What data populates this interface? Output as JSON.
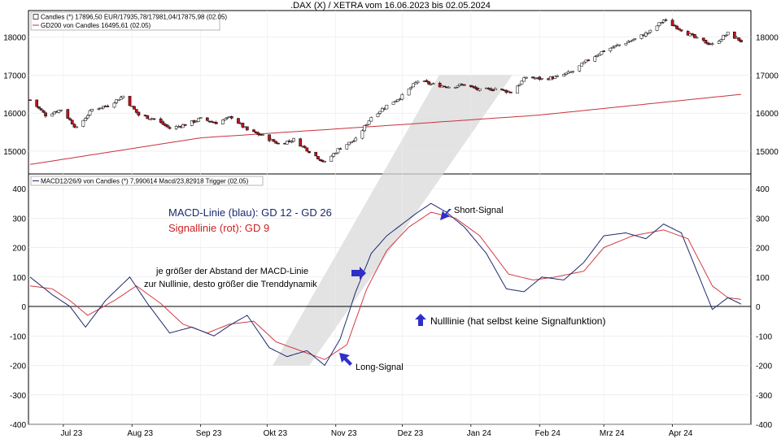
{
  "title": ".DAX (X) / XETRA vom 16.06.2023 bis 02.05.2024",
  "colors": {
    "candle_up": "#ffffff",
    "candle_down": "#c0141e",
    "gd200": "#c8323c",
    "macd": "#1f2a6b",
    "signal": "#d23c46",
    "zero_line": "#000000",
    "arrow": "#2f2fc8",
    "channel": "#d9d9d9",
    "blue_text": "#1a2a6c",
    "red_text": "#cc2222"
  },
  "chart_data": [
    {
      "type": "candlestick",
      "panel": "price",
      "legend": [
        "Candles (*) 17896,50 EUR/17935,78/17981,04/17875,98 (02.05)",
        "GD200 von Candles 16495,61 (02.05)"
      ],
      "ylim": [
        14400,
        18700
      ],
      "yticks": [
        15000,
        16000,
        17000,
        18000
      ],
      "ytick_labels": [
        "15000",
        "16000",
        "17000",
        "18000"
      ],
      "close_anchors": [
        [
          "2023-06-16",
          16350
        ],
        [
          "2023-06-23",
          15950
        ],
        [
          "2023-06-30",
          16100
        ],
        [
          "2023-07-07",
          15600
        ],
        [
          "2023-07-14",
          16100
        ],
        [
          "2023-07-21",
          16200
        ],
        [
          "2023-07-28",
          16450
        ],
        [
          "2023-08-04",
          15950
        ],
        [
          "2023-08-11",
          15850
        ],
        [
          "2023-08-18",
          15600
        ],
        [
          "2023-08-25",
          15700
        ],
        [
          "2023-09-01",
          15850
        ],
        [
          "2023-09-08",
          15750
        ],
        [
          "2023-09-15",
          15900
        ],
        [
          "2023-09-22",
          15550
        ],
        [
          "2023-09-29",
          15400
        ],
        [
          "2023-10-06",
          15200
        ],
        [
          "2023-10-13",
          15300
        ],
        [
          "2023-10-20",
          15000
        ],
        [
          "2023-10-27",
          14700
        ],
        [
          "2023-11-03",
          15100
        ],
        [
          "2023-11-10",
          15300
        ],
        [
          "2023-11-17",
          15900
        ],
        [
          "2023-11-24",
          16200
        ],
        [
          "2023-12-01",
          16450
        ],
        [
          "2023-12-08",
          16850
        ],
        [
          "2023-12-15",
          16750
        ],
        [
          "2023-12-22",
          16700
        ],
        [
          "2023-12-29",
          16750
        ],
        [
          "2024-01-05",
          16600
        ],
        [
          "2024-01-12",
          16650
        ],
        [
          "2024-01-19",
          16550
        ],
        [
          "2024-01-26",
          16950
        ],
        [
          "2024-02-02",
          16900
        ],
        [
          "2024-02-09",
          16950
        ],
        [
          "2024-02-16",
          17100
        ],
        [
          "2024-02-23",
          17400
        ],
        [
          "2024-03-01",
          17650
        ],
        [
          "2024-03-08",
          17800
        ],
        [
          "2024-03-15",
          17950
        ],
        [
          "2024-03-22",
          18150
        ],
        [
          "2024-03-28",
          18450
        ],
        [
          "2024-04-05",
          18200
        ],
        [
          "2024-04-12",
          17950
        ],
        [
          "2024-04-19",
          17800
        ],
        [
          "2024-04-26",
          18100
        ],
        [
          "2024-05-02",
          17896
        ]
      ],
      "gd200": [
        [
          "2023-06-16",
          14650
        ],
        [
          "2023-09-01",
          15350
        ],
        [
          "2023-12-01",
          15700
        ],
        [
          "2024-02-01",
          15950
        ],
        [
          "2024-05-02",
          16495
        ]
      ]
    },
    {
      "type": "line",
      "panel": "macd",
      "legend": [
        "MACD12/26/9 von Candles (*) 7,990614 Macd/23,82918 Trigger (02.05)"
      ],
      "ylim": [
        -400,
        450
      ],
      "yticks": [
        -400,
        -300,
        -200,
        -100,
        0,
        100,
        200,
        300,
        400
      ],
      "ytick_labels": [
        "-400",
        "-300",
        "-200",
        "-100",
        "0",
        "100",
        "200",
        "300",
        "400"
      ],
      "series": [
        {
          "name": "MACD-Linie",
          "points": [
            [
              "2023-06-16",
              100
            ],
            [
              "2023-06-26",
              40
            ],
            [
              "2023-07-04",
              0
            ],
            [
              "2023-07-11",
              -70
            ],
            [
              "2023-07-20",
              20
            ],
            [
              "2023-07-31",
              100
            ],
            [
              "2023-08-08",
              10
            ],
            [
              "2023-08-18",
              -90
            ],
            [
              "2023-08-28",
              -70
            ],
            [
              "2023-09-07",
              -100
            ],
            [
              "2023-09-15",
              -60
            ],
            [
              "2023-09-22",
              -30
            ],
            [
              "2023-10-02",
              -140
            ],
            [
              "2023-10-10",
              -170
            ],
            [
              "2023-10-19",
              -150
            ],
            [
              "2023-10-27",
              -200
            ],
            [
              "2023-11-03",
              -110
            ],
            [
              "2023-11-10",
              50
            ],
            [
              "2023-11-17",
              180
            ],
            [
              "2023-11-24",
              240
            ],
            [
              "2023-12-01",
              280
            ],
            [
              "2023-12-08",
              320
            ],
            [
              "2023-12-14",
              350
            ],
            [
              "2023-12-21",
              320
            ],
            [
              "2023-12-29",
              270
            ],
            [
              "2024-01-08",
              180
            ],
            [
              "2024-01-17",
              60
            ],
            [
              "2024-01-25",
              50
            ],
            [
              "2024-02-02",
              100
            ],
            [
              "2024-02-12",
              90
            ],
            [
              "2024-02-21",
              150
            ],
            [
              "2024-03-01",
              240
            ],
            [
              "2024-03-11",
              250
            ],
            [
              "2024-03-20",
              230
            ],
            [
              "2024-03-28",
              280
            ],
            [
              "2024-04-05",
              250
            ],
            [
              "2024-04-12",
              120
            ],
            [
              "2024-04-19",
              -10
            ],
            [
              "2024-04-26",
              30
            ],
            [
              "2024-05-02",
              8
            ]
          ]
        },
        {
          "name": "Signallinie",
          "points": [
            [
              "2023-06-16",
              70
            ],
            [
              "2023-06-26",
              60
            ],
            [
              "2023-07-04",
              20
            ],
            [
              "2023-07-12",
              -30
            ],
            [
              "2023-07-24",
              20
            ],
            [
              "2023-08-03",
              70
            ],
            [
              "2023-08-14",
              10
            ],
            [
              "2023-08-24",
              -60
            ],
            [
              "2023-09-04",
              -90
            ],
            [
              "2023-09-14",
              -60
            ],
            [
              "2023-09-25",
              -50
            ],
            [
              "2023-10-05",
              -120
            ],
            [
              "2023-10-16",
              -150
            ],
            [
              "2023-10-27",
              -180
            ],
            [
              "2023-11-06",
              -130
            ],
            [
              "2023-11-15",
              60
            ],
            [
              "2023-11-24",
              190
            ],
            [
              "2023-12-04",
              270
            ],
            [
              "2023-12-14",
              320
            ],
            [
              "2023-12-25",
              300
            ],
            [
              "2024-01-05",
              240
            ],
            [
              "2024-01-18",
              110
            ],
            [
              "2024-01-29",
              90
            ],
            [
              "2024-02-08",
              100
            ],
            [
              "2024-02-21",
              120
            ],
            [
              "2024-03-01",
              200
            ],
            [
              "2024-03-14",
              240
            ],
            [
              "2024-03-28",
              260
            ],
            [
              "2024-04-08",
              230
            ],
            [
              "2024-04-19",
              70
            ],
            [
              "2024-04-26",
              30
            ],
            [
              "2024-05-02",
              24
            ]
          ]
        }
      ]
    }
  ],
  "x_axis": {
    "ticks": [
      {
        "label": "Jul 23",
        "date": "2023-07-01"
      },
      {
        "label": "Aug 23",
        "date": "2023-08-01"
      },
      {
        "label": "Sep 23",
        "date": "2023-09-01"
      },
      {
        "label": "Okt 23",
        "date": "2023-10-01"
      },
      {
        "label": "Nov 23",
        "date": "2023-11-01"
      },
      {
        "label": "Dez 23",
        "date": "2023-12-01"
      },
      {
        "label": "Jan 24",
        "date": "2024-01-01"
      },
      {
        "label": "Feb 24",
        "date": "2024-02-01"
      },
      {
        "label": "Mrz 24",
        "date": "2024-03-01"
      },
      {
        "label": "Apr 24",
        "date": "2024-04-01"
      }
    ],
    "range": [
      "2023-06-16",
      "2024-05-02"
    ]
  },
  "annotations": {
    "macd_label": "MACD-Linie (blau): GD 12 - GD 26",
    "signal_label": "Signallinie (rot): GD 9",
    "trend_line1": "je größer der Abstand der MACD-Linie",
    "trend_line2": "zur Nullinie, desto größer die Trenddynamik",
    "short_signal": "Short-Signal",
    "long_signal": "Long-Signal",
    "zero_line": "Nulllinie (hat selbst keine Signalfunktion)"
  }
}
